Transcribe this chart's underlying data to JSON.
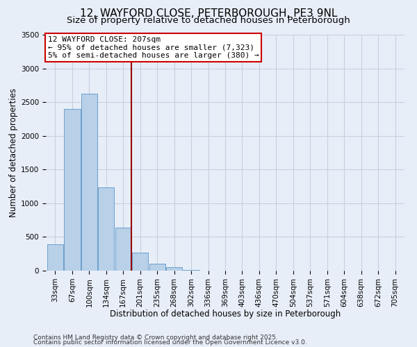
{
  "title": "12, WAYFORD CLOSE, PETERBOROUGH, PE3 9NL",
  "subtitle": "Size of property relative to detached houses in Peterborough",
  "xlabel": "Distribution of detached houses by size in Peterborough",
  "ylabel": "Number of detached properties",
  "bar_labels": [
    "33sqm",
    "67sqm",
    "100sqm",
    "134sqm",
    "167sqm",
    "201sqm",
    "235sqm",
    "268sqm",
    "302sqm",
    "336sqm",
    "369sqm",
    "403sqm",
    "436sqm",
    "470sqm",
    "504sqm",
    "537sqm",
    "571sqm",
    "604sqm",
    "638sqm",
    "672sqm",
    "705sqm"
  ],
  "bar_values": [
    390,
    2400,
    2620,
    1240,
    640,
    270,
    100,
    50,
    10,
    0,
    0,
    0,
    0,
    0,
    0,
    0,
    0,
    0,
    0,
    0,
    0
  ],
  "bar_color": "#b8d0e8",
  "bar_edge_color": "#6aa0cc",
  "vline_color": "#990000",
  "vline_x_index": 5,
  "ylim": [
    0,
    3500
  ],
  "yticks": [
    0,
    500,
    1000,
    1500,
    2000,
    2500,
    3000,
    3500
  ],
  "annotation_title": "12 WAYFORD CLOSE: 207sqm",
  "annotation_line1": "← 95% of detached houses are smaller (7,323)",
  "annotation_line2": "5% of semi-detached houses are larger (380) →",
  "annotation_box_color": "#ffffff",
  "annotation_border_color": "#cc0000",
  "footer1": "Contains HM Land Registry data © Crown copyright and database right 2025.",
  "footer2": "Contains public sector information licensed under the Open Government Licence v3.0.",
  "bg_color": "#e8eef8",
  "grid_color": "#c5d0e0",
  "title_fontsize": 11,
  "subtitle_fontsize": 9.5,
  "axis_label_fontsize": 8.5,
  "tick_fontsize": 7.5,
  "annotation_fontsize": 8,
  "footer_fontsize": 6.5
}
